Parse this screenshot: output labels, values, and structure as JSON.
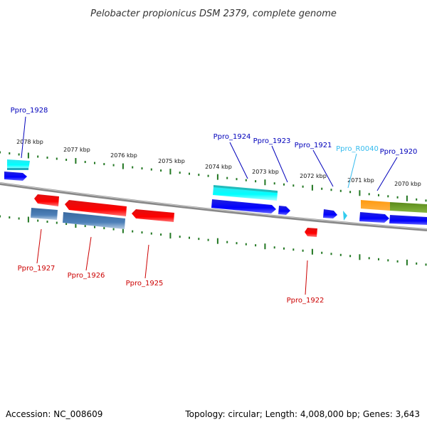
{
  "title": "Pelobacter propionicus DSM 2379, complete genome",
  "footer": {
    "accession": "Accession: NC_008609",
    "topology": "Topology: circular; Length: 4,008,000 bp; Genes: 3,643"
  },
  "colors": {
    "forward_label": "#0000bb",
    "reverse_label": "#cc0000",
    "rna_label": "#33bbee",
    "backbone": "#888888",
    "tick": "#227722"
  },
  "scale_labels": [
    "2078 kbp",
    "2077 kbp",
    "2076 kbp",
    "2075 kbp",
    "2074 kbp",
    "2073 kbp",
    "2072 kbp",
    "2071 kbp",
    "2070 kbp"
  ],
  "gene_labels": {
    "ppro_1928": "Ppro_1928",
    "ppro_1924": "Ppro_1924",
    "ppro_1923": "Ppro_1923",
    "ppro_1921": "Ppro_1921",
    "ppro_r0040": "Ppro_R0040",
    "ppro_1920": "Ppro_1920",
    "ppro_1927": "Ppro_1927",
    "ppro_1926": "Ppro_1926",
    "ppro_1925": "Ppro_1925",
    "ppro_1922": "Ppro_1922"
  }
}
